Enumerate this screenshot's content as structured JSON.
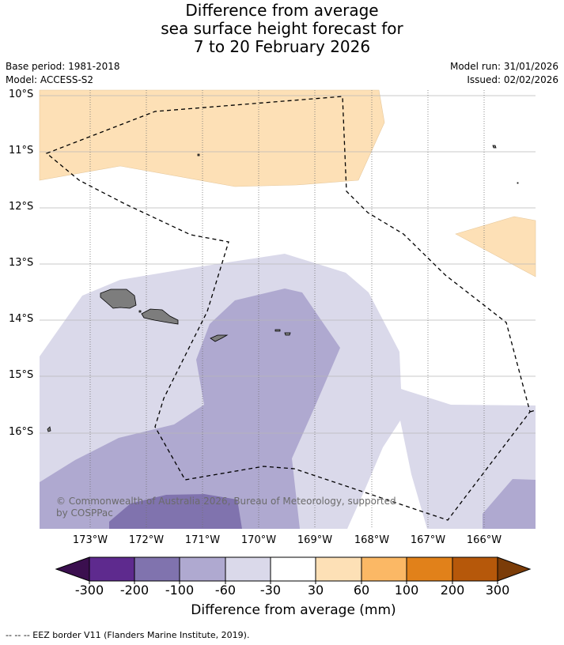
{
  "title_lines": [
    "Difference from average",
    "sea surface height forecast for",
    "7 to 20 February 2026"
  ],
  "base_period": "Base period: 1981-2018",
  "model": "Model: ACCESS-S2",
  "model_run": "Model run: 31/01/2026",
  "issued": "Issued: 02/02/2026",
  "lat_labels": [
    "10°S",
    "11°S",
    "12°S",
    "13°S",
    "14°S",
    "15°S",
    "16°S"
  ],
  "lon_labels": [
    "173°W",
    "172°W",
    "171°W",
    "170°W",
    "169°W",
    "168°W",
    "167°W",
    "166°W"
  ],
  "copyright": "© Commonwealth of Australia 2026, Bureau of Meteorology, supported by COSPPac",
  "colorbar": {
    "tick_labels": [
      "-300",
      "-200",
      "-100",
      "-60",
      "-30",
      "30",
      "60",
      "100",
      "200",
      "300"
    ],
    "title": "Difference from average (mm)",
    "colors": {
      "below_-300": "#3b0f4f",
      "-300_-200": "#5e2a8e",
      "-200_-100": "#8073ae",
      "-100_-60": "#afa9d0",
      "-60_-30": "#dad9ea",
      "-30_30": "#ffffff",
      "30_60": "#fde0b6",
      "60_100": "#fbb865",
      "100_200": "#e1811a",
      "200_300": "#b6580a",
      "above_300": "#7b3c08"
    }
  },
  "footnote": "--  --  -- EEZ border V11 (Flanders Marine Institute, 2019)."
}
